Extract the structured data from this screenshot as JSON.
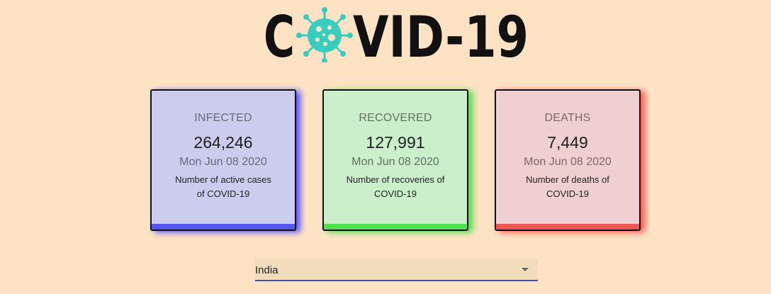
{
  "logo": {
    "letters_before": "C",
    "letters_after": "VID-19",
    "virus_icon": "coronavirus-icon",
    "color": "#111111",
    "icon_color": "#39cdbf"
  },
  "cards": [
    {
      "title": "INFECTED",
      "count": "264,246",
      "date": "Mon Jun 08 2020",
      "description": "Number of active cases of COVID-19",
      "accent": "#5555f2"
    },
    {
      "title": "RECOVERED",
      "count": "127,991",
      "date": "Mon Jun 08 2020",
      "description": "Number of recoveries of COVID-19",
      "accent": "#4fe24f"
    },
    {
      "title": "DEATHS",
      "count": "7,449",
      "date": "Mon Jun 08 2020",
      "description": "Number of deaths of COVID-19",
      "accent": "#ee5555"
    }
  ],
  "country_select": {
    "selected": "India",
    "underline_color": "#3f51b5"
  }
}
